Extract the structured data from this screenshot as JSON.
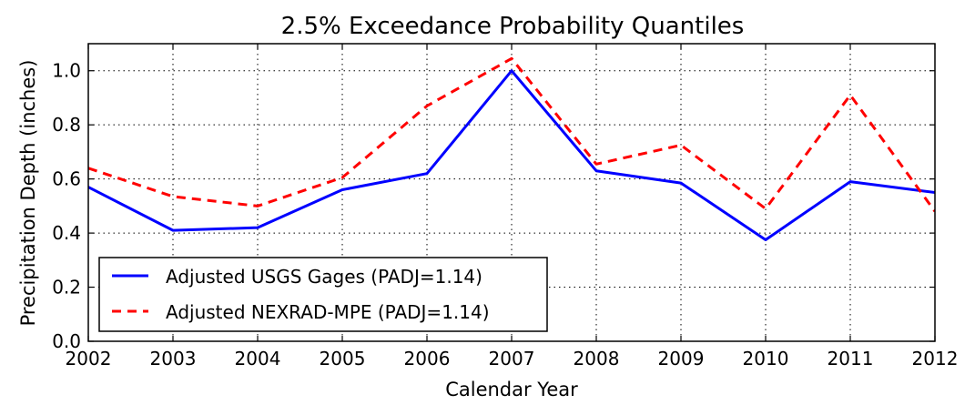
{
  "chart_data": {
    "type": "line",
    "title": "2.5% Exceedance Probability Quantiles",
    "xlabel": "Calendar Year",
    "ylabel": "Precipitation Depth (inches)",
    "xlim": [
      2002,
      2012
    ],
    "ylim": [
      0.0,
      1.1
    ],
    "x": [
      2002,
      2003,
      2004,
      2005,
      2006,
      2007,
      2008,
      2009,
      2010,
      2011,
      2012
    ],
    "xticks": [
      2002,
      2003,
      2004,
      2005,
      2006,
      2007,
      2008,
      2009,
      2010,
      2011,
      2012
    ],
    "xtick_labels": [
      "2002",
      "2003",
      "2004",
      "2005",
      "2006",
      "2007",
      "2008",
      "2009",
      "2010",
      "2011",
      "2012"
    ],
    "yticks": [
      0.0,
      0.2,
      0.4,
      0.6,
      0.8,
      1.0
    ],
    "ytick_labels": [
      "0.0",
      "0.2",
      "0.4",
      "0.6",
      "0.8",
      "1.0"
    ],
    "grid": true,
    "legend_position": "bottom-left",
    "series": [
      {
        "name": "Adjusted USGS Gages (PADJ=1.14)",
        "color": "#0000ff",
        "style": "solid",
        "values": [
          0.57,
          0.41,
          0.42,
          0.56,
          0.62,
          1.0,
          0.63,
          0.585,
          0.375,
          0.59,
          0.55
        ]
      },
      {
        "name": "Adjusted NEXRAD-MPE (PADJ=1.14)",
        "color": "#ff0000",
        "style": "dashed",
        "values": [
          0.64,
          0.535,
          0.5,
          0.605,
          0.87,
          1.045,
          0.655,
          0.725,
          0.49,
          0.91,
          0.48
        ]
      }
    ]
  }
}
